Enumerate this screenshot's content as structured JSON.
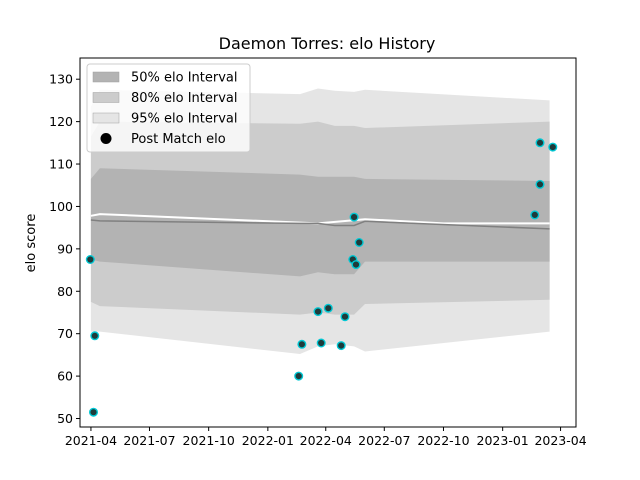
{
  "chart_data": {
    "type": "line",
    "title": "Daemon Torres: elo History",
    "xlabel": "",
    "ylabel": "elo score",
    "x_ticks": [
      "2021-04",
      "2021-07",
      "2021-10",
      "2022-01",
      "2022-04",
      "2022-07",
      "2022-10",
      "2023-01",
      "2023-04"
    ],
    "y_ticks": [
      50,
      60,
      70,
      80,
      90,
      100,
      110,
      120,
      130
    ],
    "ylim": [
      48,
      135
    ],
    "xlim": [
      "2021-03-15",
      "2023-04-25"
    ],
    "legend_position": "top-left",
    "legend": [
      {
        "label": "50% elo Interval",
        "kind": "band50"
      },
      {
        "label": "80% elo Interval",
        "kind": "band80"
      },
      {
        "label": "95% elo Interval",
        "kind": "band95"
      },
      {
        "label": "Post Match elo",
        "kind": "points"
      }
    ],
    "colors": {
      "band50": "#b3b3b3",
      "band80": "#cccccc",
      "band95": "#e5e5e5",
      "mean_line": "#808080",
      "white_line": "#ffffff",
      "point_fill": "#1f3b3b",
      "point_edge": "#00c8d4"
    },
    "interval_series": [
      {
        "date": "2021-04-01",
        "mean": 96.8,
        "lo50": 87.5,
        "hi50": 106.5,
        "lo80": 77.5,
        "hi80": 116.5,
        "lo95": 70.5,
        "hi95": 123.5
      },
      {
        "date": "2021-04-15",
        "mean": 96.6,
        "lo50": 87.0,
        "hi50": 109.0,
        "lo80": 76.5,
        "hi80": 120.0,
        "lo95": 70.5,
        "hi95": 127.5
      },
      {
        "date": "2022-02-20",
        "mean": 96.0,
        "lo50": 83.5,
        "hi50": 107.5,
        "lo80": 74.5,
        "hi80": 119.5,
        "lo95": 65.2,
        "hi95": 126.5
      },
      {
        "date": "2022-03-20",
        "mean": 96.0,
        "lo50": 84.5,
        "hi50": 107.0,
        "lo80": 75.0,
        "hi80": 120.0,
        "lo95": 67.0,
        "hi95": 127.8
      },
      {
        "date": "2022-04-15",
        "mean": 95.5,
        "lo50": 84.0,
        "hi50": 107.0,
        "lo80": 74.5,
        "hi80": 119.0,
        "lo95": 67.5,
        "hi95": 127.3
      },
      {
        "date": "2022-05-15",
        "mean": 95.5,
        "lo50": 84.0,
        "hi50": 107.0,
        "lo80": 74.5,
        "hi80": 119.0,
        "lo95": 67.0,
        "hi95": 127.0
      },
      {
        "date": "2022-06-01",
        "mean": 96.5,
        "lo50": 87.0,
        "hi50": 106.5,
        "lo80": 77.0,
        "hi80": 118.5,
        "lo95": 65.8,
        "hi95": 127.5
      },
      {
        "date": "2023-03-15",
        "mean": 94.7,
        "lo50": 87.0,
        "hi50": 106.0,
        "lo80": 78.0,
        "hi80": 120.0,
        "lo95": 70.5,
        "hi95": 125.0
      }
    ],
    "mean_white_line": [
      {
        "date": "2021-04-01",
        "value": 97.8
      },
      {
        "date": "2021-04-15",
        "value": 98.2
      },
      {
        "date": "2022-03-20",
        "value": 96.0
      },
      {
        "date": "2022-06-01",
        "value": 97.0
      },
      {
        "date": "2022-10-01",
        "value": 96.0
      },
      {
        "date": "2023-03-15",
        "value": 96.0
      }
    ],
    "points": [
      {
        "date": "2021-03-31",
        "value": 87.5
      },
      {
        "date": "2021-04-05",
        "value": 51.5
      },
      {
        "date": "2021-04-07",
        "value": 69.5
      },
      {
        "date": "2022-02-18",
        "value": 60.0
      },
      {
        "date": "2022-02-23",
        "value": 67.5
      },
      {
        "date": "2022-03-20",
        "value": 75.2
      },
      {
        "date": "2022-03-25",
        "value": 67.8
      },
      {
        "date": "2022-04-05",
        "value": 76.0
      },
      {
        "date": "2022-04-25",
        "value": 67.2
      },
      {
        "date": "2022-05-01",
        "value": 74.0
      },
      {
        "date": "2022-05-15",
        "value": 97.5
      },
      {
        "date": "2022-05-13",
        "value": 87.5
      },
      {
        "date": "2022-05-18",
        "value": 86.3
      },
      {
        "date": "2022-05-23",
        "value": 91.5
      },
      {
        "date": "2023-02-20",
        "value": 98.0
      },
      {
        "date": "2023-02-28",
        "value": 115.0
      },
      {
        "date": "2023-02-28",
        "value": 105.2
      },
      {
        "date": "2023-03-20",
        "value": 114.0
      }
    ]
  }
}
